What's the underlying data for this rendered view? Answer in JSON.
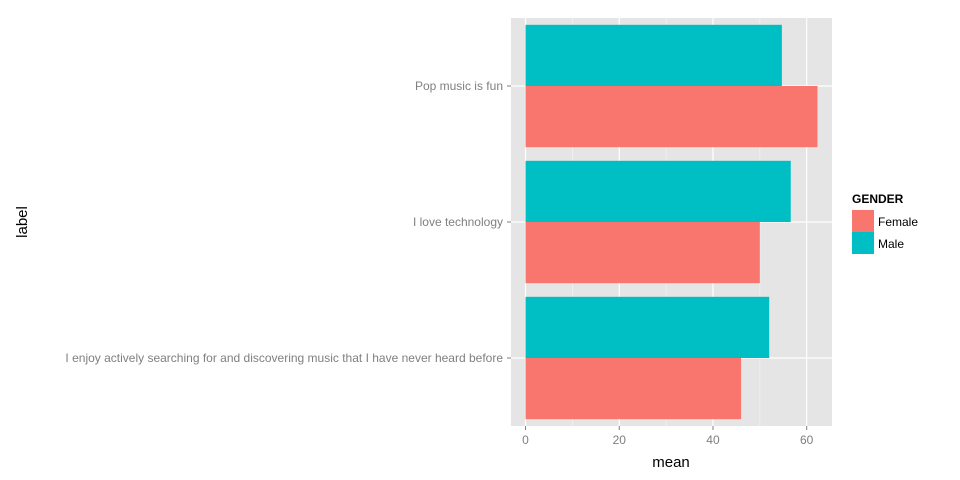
{
  "chart_data": {
    "type": "bar",
    "orientation": "horizontal",
    "categories": [
      "I enjoy actively searching for and discovering music that I have never heard before",
      "I love technology",
      "Pop music is fun"
    ],
    "series": [
      {
        "name": "Female",
        "color": "#F8766D",
        "values": [
          46,
          50,
          62.3
        ]
      },
      {
        "name": "Male",
        "color": "#00BFC4",
        "values": [
          52,
          56.6,
          54.7
        ]
      }
    ],
    "xlabel": "mean",
    "ylabel": "label",
    "xlim": [
      -3.1,
      65.4
    ],
    "xticks": [
      0,
      20,
      40,
      60
    ],
    "grid": true,
    "legend": {
      "title": "GENDER",
      "position": "right"
    },
    "panel_background": "#E5E5E5",
    "grid_color": "#FFFFFF"
  }
}
